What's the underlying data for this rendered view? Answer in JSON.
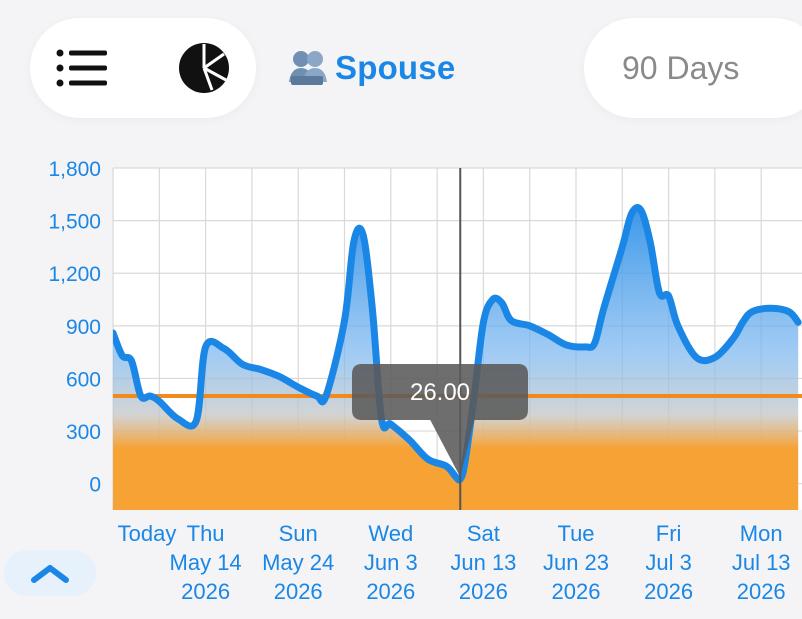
{
  "header": {
    "menu_icon": "list-icon",
    "chart_icon": "pie-chart-icon",
    "profile": {
      "icon": "people-icon",
      "name": "Spouse"
    },
    "range_label": "90 Days"
  },
  "tooltip": {
    "value": "26.00"
  },
  "collapse_button": {
    "icon": "chevron-up-icon"
  },
  "colors": {
    "accent": "#1a87e6",
    "line": "#1a87e6",
    "threshold": "#f08a1c",
    "below": "#f7a234"
  },
  "chart_data": {
    "type": "area",
    "y_ticks": [
      "1,800",
      "1,500",
      "1,200",
      "900",
      "600",
      "300",
      "0"
    ],
    "ylim": [
      -150,
      1800
    ],
    "threshold": 500,
    "selected_x": 37.5,
    "x_labels": [
      {
        "x": 0,
        "lines": [
          "Today"
        ]
      },
      {
        "x": 10,
        "lines": [
          "Thu",
          "May 14",
          "2026"
        ]
      },
      {
        "x": 20,
        "lines": [
          "Sun",
          "May 24",
          "2026"
        ]
      },
      {
        "x": 30,
        "lines": [
          "Wed",
          "Jun 3",
          "2026"
        ]
      },
      {
        "x": 40,
        "lines": [
          "Sat",
          "Jun 13",
          "2026"
        ]
      },
      {
        "x": 50,
        "lines": [
          "Tue",
          "Jun 23",
          "2026"
        ]
      },
      {
        "x": 60,
        "lines": [
          "Fri",
          "Jul 3",
          "2026"
        ]
      },
      {
        "x": 70,
        "lines": [
          "Mon",
          "Jul 13",
          "2026"
        ]
      }
    ],
    "series": [
      {
        "points": [
          [
            0,
            860
          ],
          [
            1,
            730
          ],
          [
            2,
            700
          ],
          [
            3,
            500
          ],
          [
            4,
            500
          ],
          [
            5,
            470
          ],
          [
            7,
            370
          ],
          [
            9,
            360
          ],
          [
            10,
            780
          ],
          [
            12,
            770
          ],
          [
            14,
            680
          ],
          [
            16,
            650
          ],
          [
            18,
            610
          ],
          [
            20,
            550
          ],
          [
            22,
            500
          ],
          [
            23,
            500
          ],
          [
            25,
            930
          ],
          [
            26,
            1380
          ],
          [
            27,
            1420
          ],
          [
            28,
            1000
          ],
          [
            29,
            370
          ],
          [
            30,
            340
          ],
          [
            32,
            250
          ],
          [
            34,
            140
          ],
          [
            36,
            100
          ],
          [
            37,
            40
          ],
          [
            37.5,
            26
          ],
          [
            38,
            120
          ],
          [
            39,
            500
          ],
          [
            40,
            920
          ],
          [
            41,
            1050
          ],
          [
            42,
            1030
          ],
          [
            43,
            930
          ],
          [
            45,
            900
          ],
          [
            47,
            850
          ],
          [
            49,
            790
          ],
          [
            51,
            780
          ],
          [
            52,
            800
          ],
          [
            53,
            1000
          ],
          [
            55,
            1350
          ],
          [
            56,
            1540
          ],
          [
            57,
            1560
          ],
          [
            58,
            1380
          ],
          [
            59,
            1090
          ],
          [
            60,
            1070
          ],
          [
            61,
            900
          ],
          [
            63,
            720
          ],
          [
            65,
            720
          ],
          [
            67,
            830
          ],
          [
            68,
            920
          ],
          [
            69,
            980
          ],
          [
            71,
            1000
          ],
          [
            73,
            980
          ],
          [
            74,
            920
          ]
        ]
      }
    ]
  }
}
